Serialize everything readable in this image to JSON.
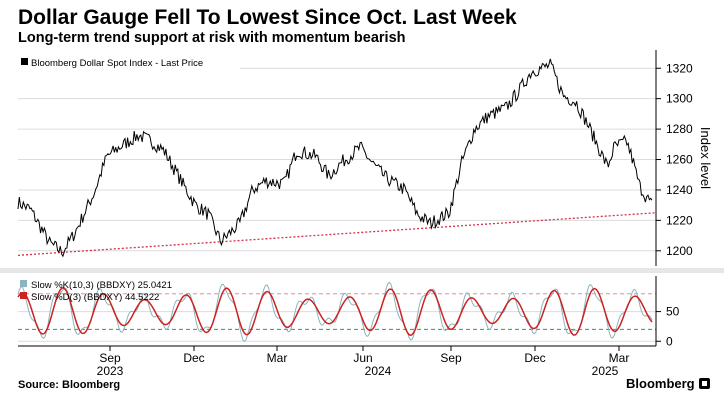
{
  "header": {
    "title": "Dollar Gauge Fell To Lowest Since Oct. Last Week",
    "subtitle": "Long-term trend support at risk with momentum bearish"
  },
  "footer": {
    "source": "Source: Bloomberg",
    "brand": "Bloomberg"
  },
  "colors": {
    "price": "#000000",
    "trend": "#d6304a",
    "k_line": "#8ab4be",
    "d_line": "#cc2222",
    "level_high": "#e09090",
    "level_low": "#2e9e4e",
    "grid": "#dcdcdc"
  },
  "chart_data": [
    {
      "type": "line",
      "legend": "Bloomberg Dollar Spot Index - Last Price",
      "ylabel": "Index level",
      "ylim": [
        1190,
        1332
      ],
      "yticks": [
        1200,
        1220,
        1240,
        1260,
        1280,
        1300,
        1320
      ],
      "trend_support": {
        "name": "Long-term trend support",
        "start": 1197,
        "end": 1225
      },
      "series": [
        {
          "name": "Bloomberg Dollar Spot Index - Last Price",
          "x": [
            0,
            0.02,
            0.05,
            0.07,
            0.09,
            0.12,
            0.14,
            0.16,
            0.19,
            0.21,
            0.23,
            0.26,
            0.28,
            0.3,
            0.32,
            0.35,
            0.37,
            0.39,
            0.42,
            0.44,
            0.47,
            0.49,
            0.51,
            0.54,
            0.56,
            0.58,
            0.61,
            0.63,
            0.65,
            0.68,
            0.7,
            0.72,
            0.74,
            0.77,
            0.79,
            0.81,
            0.84,
            0.86,
            0.88,
            0.9,
            0.92,
            0.93,
            0.94,
            0.96,
            0.97,
            0.98,
            0.99,
            1.0
          ],
          "values": [
            1232,
            1227,
            1205,
            1199,
            1212,
            1238,
            1262,
            1268,
            1276,
            1272,
            1266,
            1244,
            1230,
            1224,
            1206,
            1218,
            1240,
            1246,
            1244,
            1266,
            1262,
            1249,
            1258,
            1268,
            1257,
            1248,
            1240,
            1224,
            1218,
            1225,
            1258,
            1280,
            1288,
            1294,
            1305,
            1318,
            1322,
            1302,
            1298,
            1282,
            1264,
            1255,
            1268,
            1272,
            1259,
            1243,
            1236,
            1230
          ]
        }
      ]
    },
    {
      "type": "line",
      "ylim": [
        -8,
        110
      ],
      "yticks": [
        0,
        50
      ],
      "levels": [
        80,
        20
      ],
      "x_ticks": [
        "Sep",
        "Dec",
        "Mar",
        "Jun",
        "Sep",
        "Dec",
        "Mar"
      ],
      "x_years": [
        "2023",
        "2024",
        "2025"
      ],
      "series": [
        {
          "name": "Slow %K(10,3) (BBDXY)",
          "label": "Slow %K(10,3) (BBDXY)",
          "last_value": "25.0421"
        },
        {
          "name": "Slow %D(3) (BBDXY)",
          "label": "Slow %D(3) (BBDXY)",
          "last_value": "44.5222"
        }
      ]
    }
  ]
}
